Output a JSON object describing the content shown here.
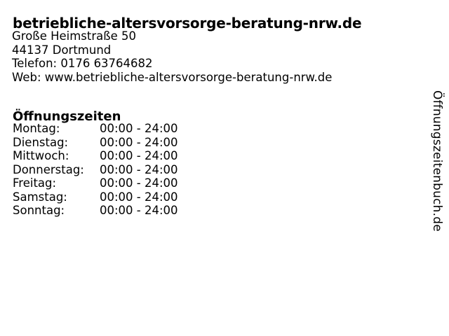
{
  "page": {
    "title": "betriebliche-altersvorsorge-beratung-nrw.de",
    "address": {
      "street": "Große Heimstraße 50",
      "city": "44137 Dortmund",
      "phone": "Telefon: 0176 63764682",
      "web": "Web: www.betriebliche-altersvorsorge-beratung-nrw.de"
    },
    "hours": {
      "heading": "Öffnungszeiten",
      "rows": [
        {
          "day": "Montag:",
          "time": "00:00 - 24:00"
        },
        {
          "day": "Dienstag:",
          "time": "00:00 - 24:00"
        },
        {
          "day": "Mittwoch:",
          "time": "00:00 - 24:00"
        },
        {
          "day": "Donnerstag:",
          "time": "00:00 - 24:00"
        },
        {
          "day": "Freitag:",
          "time": "00:00 - 24:00"
        },
        {
          "day": "Samstag:",
          "time": "00:00 - 24:00"
        },
        {
          "day": "Sonntag:",
          "time": "00:00 - 24:00"
        }
      ]
    },
    "watermark": "Öffnungszeitenbuch.de"
  },
  "colors": {
    "text": "#000000",
    "background": "#ffffff"
  }
}
